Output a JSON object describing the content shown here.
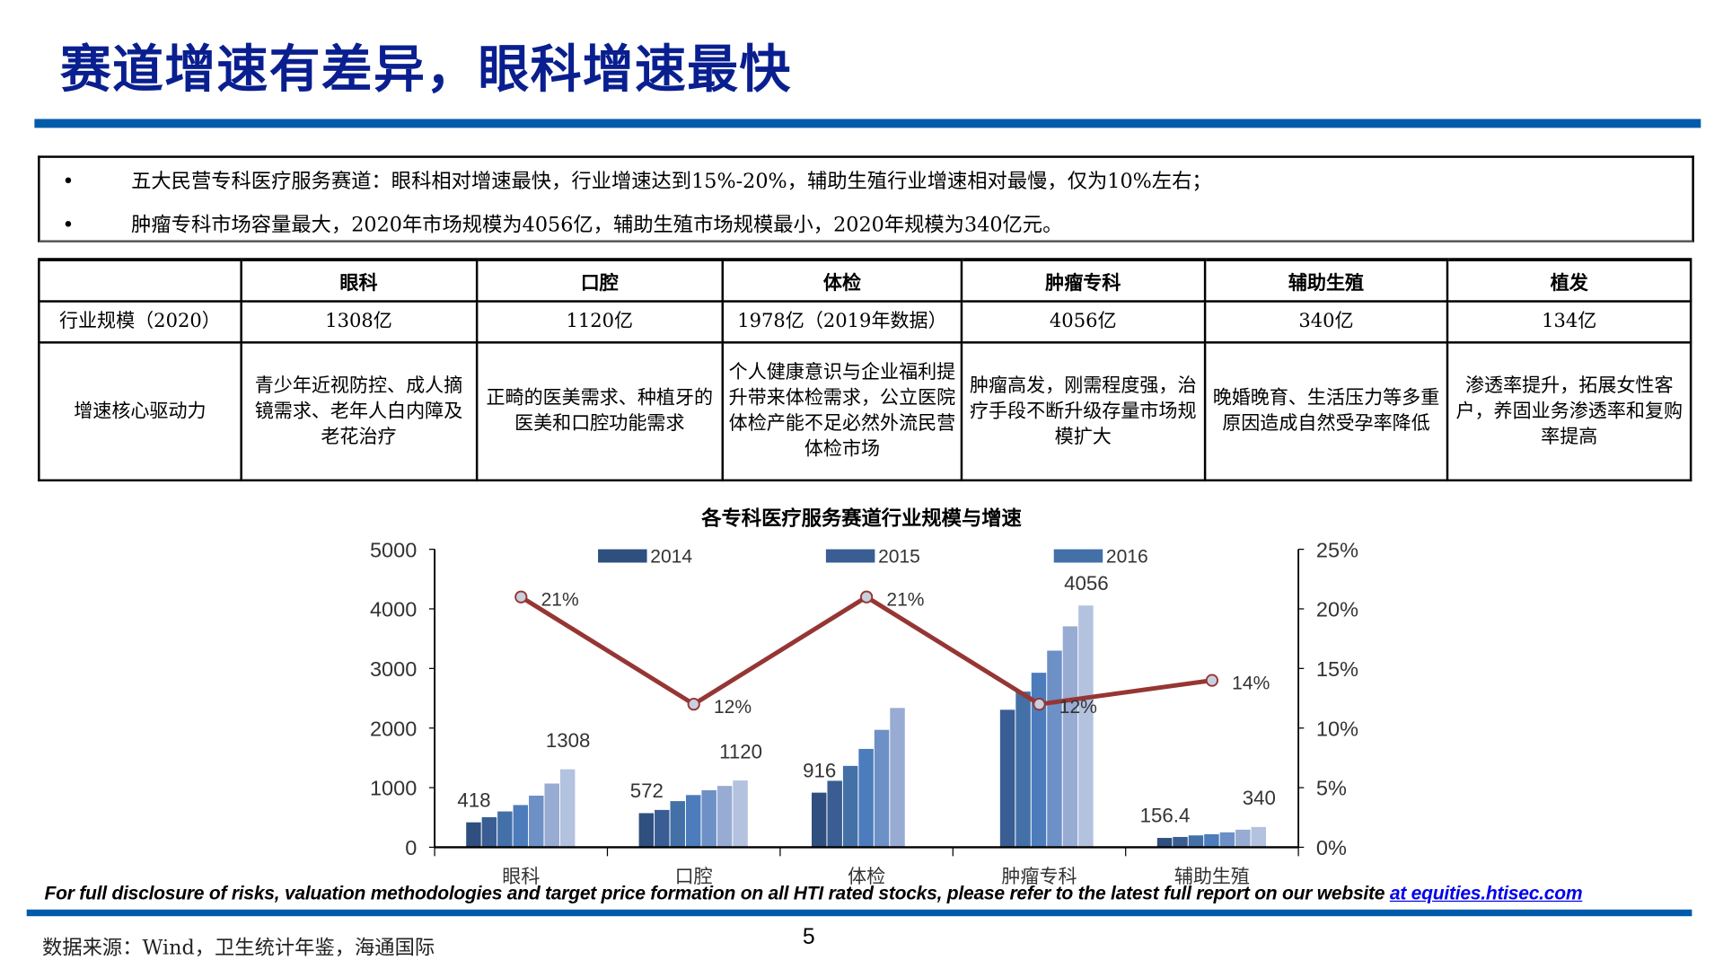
{
  "title": "赛道增速有差异，眼科增速最快",
  "bullets": [
    "五大民营专科医疗服务赛道：眼科相对增速最快，行业增速达到15%-20%，辅助生殖行业增速相对最慢，仅为10%左右；",
    "肿瘤专科市场容量最大，2020年市场规模为4056亿，辅助生殖市场规模最小，2020年规模为340亿元。"
  ],
  "bullet_symbol": "•",
  "table": {
    "headers": [
      "",
      "眼科",
      "口腔",
      "体检",
      "肿瘤专科",
      "辅助生殖",
      "植发"
    ],
    "rows": [
      [
        "行业规模（2020）",
        "1308亿",
        "1120亿",
        "1978亿（2019年数据）",
        "4056亿",
        "340亿",
        "134亿"
      ],
      [
        "增速核心驱动力",
        "青少年近视防控、成人摘镜需求、老年人白内障及老花治疗",
        "正畸的医美需求、种植牙的医美和口腔功能需求",
        "个人健康意识与企业福利提升带来体检需求，公立医院体检产能不足必然外流民营体检市场",
        "肿瘤高发，刚需程度强，治疗手段不断升级存量市场规模扩大",
        "晚婚晚育、生活压力等多重原因造成自然受孕率降低",
        "渗透率提升，拓展女性客户，养固业务渗透率和复购率提高"
      ]
    ]
  },
  "chart_data": {
    "type": "bar+line",
    "title": "各专科医疗服务赛道行业规模与增速",
    "categories": [
      "眼科",
      "口腔",
      "体检",
      "肿瘤专科",
      "辅助生殖"
    ],
    "bar_series": [
      {
        "name": "2014",
        "values": [
          418,
          572,
          916,
          null,
          156.4
        ]
      },
      {
        "name": "2015",
        "values": [
          504,
          626,
          1115,
          2307,
          173
        ]
      },
      {
        "name": "2016",
        "values": [
          601,
          774,
          1365,
          2612,
          199
        ]
      },
      {
        "values": [
          708,
          876,
          1650,
          2928,
          219
        ]
      },
      {
        "values": [
          866,
          957,
          1970,
          3299,
          250
        ]
      },
      {
        "values": [
          1069,
          1029,
          2337,
          3707,
          295
        ]
      },
      {
        "values": [
          1308,
          1120,
          null,
          4056,
          340
        ]
      }
    ],
    "bar_colors": [
      "#2f4f7f",
      "#3a5e93",
      "#4470a8",
      "#4c7cbb",
      "#6d90c6",
      "#97abd3",
      "#b3c2de"
    ],
    "bar_labels": [
      {
        "category": "眼科",
        "labels": [
          "418",
          "1308"
        ]
      },
      {
        "category": "口腔",
        "labels": [
          "572",
          "1120"
        ]
      },
      {
        "category": "体检",
        "labels": [
          "916"
        ]
      },
      {
        "category": "肿瘤专科",
        "labels": [
          "4056"
        ]
      },
      {
        "category": "辅助生殖",
        "labels": [
          "156.4",
          "340"
        ]
      }
    ],
    "line_series": {
      "values": [
        21,
        12,
        21,
        12,
        14
      ],
      "labels": [
        "21%",
        "12%",
        "21%",
        "12%",
        "14%"
      ],
      "color": "#963634"
    },
    "y_left": {
      "range": [
        0,
        5000
      ],
      "ticks": [
        "0",
        "1000",
        "2000",
        "3000",
        "4000",
        "5000"
      ]
    },
    "y_right": {
      "range": [
        0,
        25
      ],
      "ticks": [
        "0%",
        "5%",
        "10%",
        "15%",
        "20%",
        "25%"
      ]
    },
    "legend": [
      "2014",
      "2015",
      "2016"
    ],
    "legend_placement": "top",
    "grid": false
  },
  "footer": {
    "disclaimer": "For full disclosure of risks, valuation methodologies and target price formation on all HTI rated stocks, please refer to the latest full report on our website ",
    "link": "at equities.htisec.com",
    "source": "数据来源：Wind，卫生统计年鉴，海通国际",
    "page_number": "5"
  },
  "colors": {
    "title": "#0a1f8f",
    "rule": "#005bab"
  }
}
